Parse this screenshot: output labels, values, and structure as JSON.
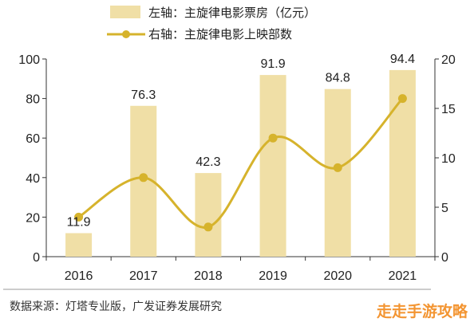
{
  "chart_data": {
    "type": "bar+line",
    "categories": [
      "2016",
      "2017",
      "2018",
      "2019",
      "2020",
      "2021"
    ],
    "series": [
      {
        "name": "左轴：主旋律电影票房（亿元）",
        "type": "bar",
        "axis": "left",
        "values": [
          11.9,
          76.3,
          42.3,
          91.9,
          84.8,
          94.4
        ],
        "labels": [
          "11.9",
          "76.3",
          "42.3",
          "91.9",
          "84.8",
          "94.4"
        ],
        "color": "#f0dfa6"
      },
      {
        "name": "右轴：主旋律电影上映部数",
        "type": "line",
        "axis": "right",
        "values": [
          4,
          8,
          3,
          12,
          9,
          16
        ],
        "color": "#d6b32c"
      }
    ],
    "y_left": {
      "range": [
        0,
        100
      ],
      "ticks": [
        "0",
        "20",
        "40",
        "60",
        "80",
        "100"
      ]
    },
    "y_right": {
      "range": [
        0,
        20
      ],
      "ticks": [
        "0",
        "5",
        "10",
        "15",
        "20"
      ]
    },
    "legend_position": "top"
  },
  "source": "数据来源：灯塔专业版，广发证券发展研究",
  "watermark": "走走手游攻略"
}
